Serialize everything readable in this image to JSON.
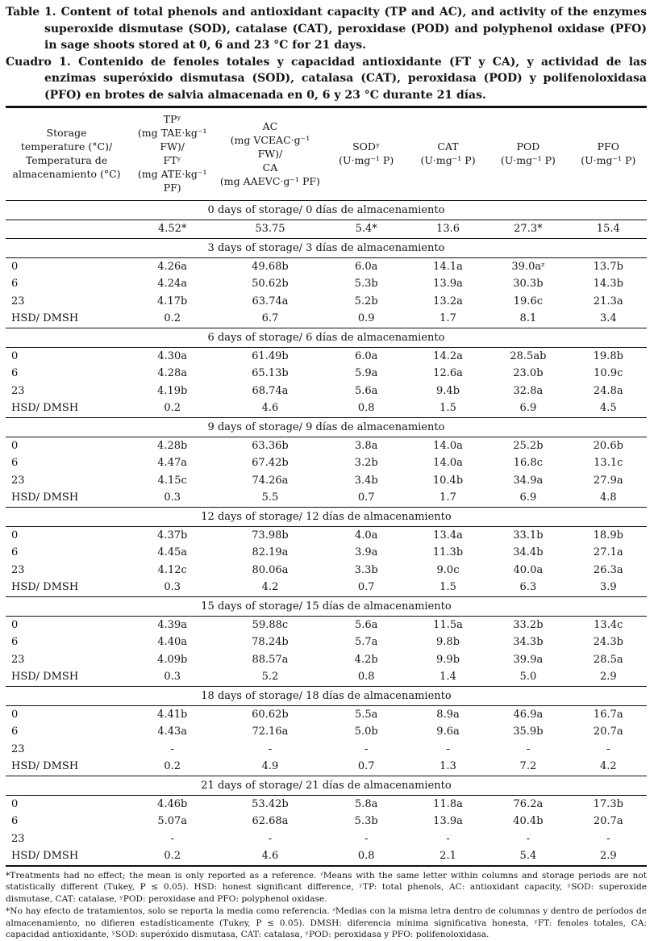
{
  "page": {
    "title_en_label": "Table 1.",
    "title_en_body": "Content of total phenols and antioxidant capacity (TP and AC), and activity of the enzymes superoxide dismutase (SOD), catalase (CAT), peroxidase (POD) and polyphenol oxidase (PFO) in sage shoots stored at 0, 6 and 23 °C for 21 days.",
    "title_es_label": "Cuadro 1.",
    "title_es_body": "Contenido de fenoles totales y capacidad antioxidante (FT y CA), y actividad de las enzimas superóxido dismutasa (SOD), catalasa (CAT),  peroxidasa (POD) y polifenoloxidasa (PFO) en brotes de salvia almacenada en 0, 6 y 23 °C durante 21 días.",
    "footnote_en": "*Treatments had no effect; the mean is only reported as a reference. ᶻMeans with the same letter within columns and storage periods are not statistically different (Tukey, P ≤ 0.05). HSD: honest significant difference, ʸTP: total phenols, AC: antioxidant capacity, ʸSOD: superoxide dismutase, CAT: catalase, ʸPOD: peroxidase and PFO: polyphenol oxidase.",
    "footnote_es": "*No hay efecto de tratamientos, solo se reporta la media como referencia. ᶻMedias con la misma letra dentro de columnas y dentro de períodos de almacenamiento, no difieren estadísticamente (Tukey, P ≤ 0.05). DMSH: diferencia mínima significativa honesta, ʸFT: fenoles totales, CA: capacidad antioxidante, ʸSOD: superóxido dismutasa, CAT: catalasa, ʸPOD: peroxidasa y PFO: polifenoloxidasa."
  },
  "table": {
    "columns": [
      {
        "id": "temp",
        "lines": [
          "Storage",
          "temperature (°C)/",
          "Temperatura de",
          "almacenamiento (°C)"
        ]
      },
      {
        "id": "tp",
        "lines": [
          "TPʸ",
          "(mg TAE·kg⁻¹ FW)/",
          "FTʸ",
          "(mg ATE·kg⁻¹ PF)"
        ]
      },
      {
        "id": "ac",
        "lines": [
          "AC",
          "(mg VCEAC·g⁻¹ FW)/",
          "CA",
          "(mg AAEVC·g⁻¹ PF)"
        ]
      },
      {
        "id": "sod",
        "lines": [
          "SODʸ",
          "(U·mg⁻¹ P)"
        ]
      },
      {
        "id": "cat",
        "lines": [
          "CAT",
          "(U·mg⁻¹ P)"
        ]
      },
      {
        "id": "pod",
        "lines": [
          "POD",
          "(U·mg⁻¹ P)"
        ]
      },
      {
        "id": "pfo",
        "lines": [
          "PFO",
          "(U·mg⁻¹ P)"
        ]
      }
    ],
    "sections": [
      {
        "header": "0 days of storage/ 0 días de almacenamiento",
        "rows": [
          {
            "label": "",
            "values": [
              "4.52*",
              "53.75",
              "5.4*",
              "13.6",
              "27.3*",
              "15.4"
            ]
          }
        ]
      },
      {
        "header": "3 days of storage/ 3 días de almacenamiento",
        "rows": [
          {
            "label": "0",
            "values": [
              "4.26a",
              "49.68b",
              "6.0a",
              "14.1a",
              "39.0aᶻ",
              "13.7b"
            ]
          },
          {
            "label": "6",
            "values": [
              "4.24a",
              "50.62b",
              "5.3b",
              "13.9a",
              "30.3b",
              "14.3b"
            ]
          },
          {
            "label": "23",
            "values": [
              "4.17b",
              "63.74a",
              "5.2b",
              "13.2a",
              "19.6c",
              "21.3a"
            ]
          },
          {
            "label": "HSD/ DMSH",
            "values": [
              "0.2",
              "6.7",
              "0.9",
              "1.7",
              "8.1",
              "3.4"
            ]
          }
        ]
      },
      {
        "header": "6 days of storage/ 6 días de almacenamiento",
        "rows": [
          {
            "label": "0",
            "values": [
              "4.30a",
              "61.49b",
              "6.0a",
              "14.2a",
              "28.5ab",
              "19.8b"
            ]
          },
          {
            "label": "6",
            "values": [
              "4.28a",
              "65.13b",
              "5.9a",
              "12.6a",
              "23.0b",
              "10.9c"
            ]
          },
          {
            "label": "23",
            "values": [
              "4.19b",
              "68.74a",
              "5.6a",
              "9.4b",
              "32.8a",
              "24.8a"
            ]
          },
          {
            "label": "HSD/ DMSH",
            "values": [
              "0.2",
              "4.6",
              "0.8",
              "1.5",
              "6.9",
              "4.5"
            ]
          }
        ]
      },
      {
        "header": "9 days of storage/ 9 días de almacenamiento",
        "rows": [
          {
            "label": "0",
            "values": [
              "4.28b",
              "63.36b",
              "3.8a",
              "14.0a",
              "25.2b",
              "20.6b"
            ]
          },
          {
            "label": "6",
            "values": [
              "4.47a",
              "67.42b",
              "3.2b",
              "14.0a",
              "16.8c",
              "13.1c"
            ]
          },
          {
            "label": "23",
            "values": [
              "4.15c",
              "74.26a",
              "3.4b",
              "10.4b",
              "34.9a",
              "27.9a"
            ]
          },
          {
            "label": "HSD/ DMSH",
            "values": [
              "0.3",
              "5.5",
              "0.7",
              "1.7",
              "6.9",
              "4.8"
            ]
          }
        ]
      },
      {
        "header": "12 days of storage/ 12 días de almacenamiento",
        "rows": [
          {
            "label": "0",
            "values": [
              "4.37b",
              "73.98b",
              "4.0a",
              "13.4a",
              "33.1b",
              "18.9b"
            ]
          },
          {
            "label": "6",
            "values": [
              "4.45a",
              "82.19a",
              "3.9a",
              "11.3b",
              "34.4b",
              "27.1a"
            ]
          },
          {
            "label": "23",
            "values": [
              "4.12c",
              "80.06a",
              "3.3b",
              "9.0c",
              "40.0a",
              "26.3a"
            ]
          },
          {
            "label": "HSD/ DMSH",
            "values": [
              "0.3",
              "4.2",
              "0.7",
              "1.5",
              "6.3",
              "3.9"
            ]
          }
        ]
      },
      {
        "header": "15 days of storage/ 15 días de almacenamiento",
        "rows": [
          {
            "label": "0",
            "values": [
              "4.39a",
              "59.88c",
              "5.6a",
              "11.5a",
              "33.2b",
              "13.4c"
            ]
          },
          {
            "label": "6",
            "values": [
              "4.40a",
              "78.24b",
              "5.7a",
              "9.8b",
              "34.3b",
              "24.3b"
            ]
          },
          {
            "label": "23",
            "values": [
              "4.09b",
              "88.57a",
              "4.2b",
              "9.9b",
              "39.9a",
              "28.5a"
            ]
          },
          {
            "label": "HSD/ DMSH",
            "values": [
              "0.3",
              "5.2",
              "0.8",
              "1.4",
              "5.0",
              "2.9"
            ]
          }
        ]
      },
      {
        "header": "18 days of storage/ 18 días de almacenamiento",
        "rows": [
          {
            "label": "0",
            "values": [
              "4.41b",
              "60.62b",
              "5.5a",
              "8.9a",
              "46.9a",
              "16.7a"
            ]
          },
          {
            "label": "6",
            "values": [
              "4.43a",
              "72.16a",
              "5.0b",
              "9.6a",
              "35.9b",
              "20.7a"
            ]
          },
          {
            "label": "23",
            "values": [
              "-",
              "-",
              "-",
              "-",
              "-",
              "-"
            ]
          },
          {
            "label": "HSD/ DMSH",
            "values": [
              "0.2",
              "4.9",
              "0.7",
              "1.3",
              "7.2",
              "4.2"
            ]
          }
        ]
      },
      {
        "header": "21 days of storage/ 21 días de almacenamiento",
        "rows": [
          {
            "label": "0",
            "values": [
              "4.46b",
              "53.42b",
              "5.8a",
              "11.8a",
              "76.2a",
              "17.3b"
            ]
          },
          {
            "label": "6",
            "values": [
              "5.07a",
              "62.68a",
              "5.3b",
              "13.9a",
              "40.4b",
              "20.7a"
            ]
          },
          {
            "label": "23",
            "values": [
              "-",
              "-",
              "-",
              "-",
              "-",
              "-"
            ]
          },
          {
            "label": "HSD/ DMSH",
            "values": [
              "0.2",
              "4.6",
              "0.8",
              "2.1",
              "5.4",
              "2.9"
            ]
          }
        ]
      }
    ]
  }
}
